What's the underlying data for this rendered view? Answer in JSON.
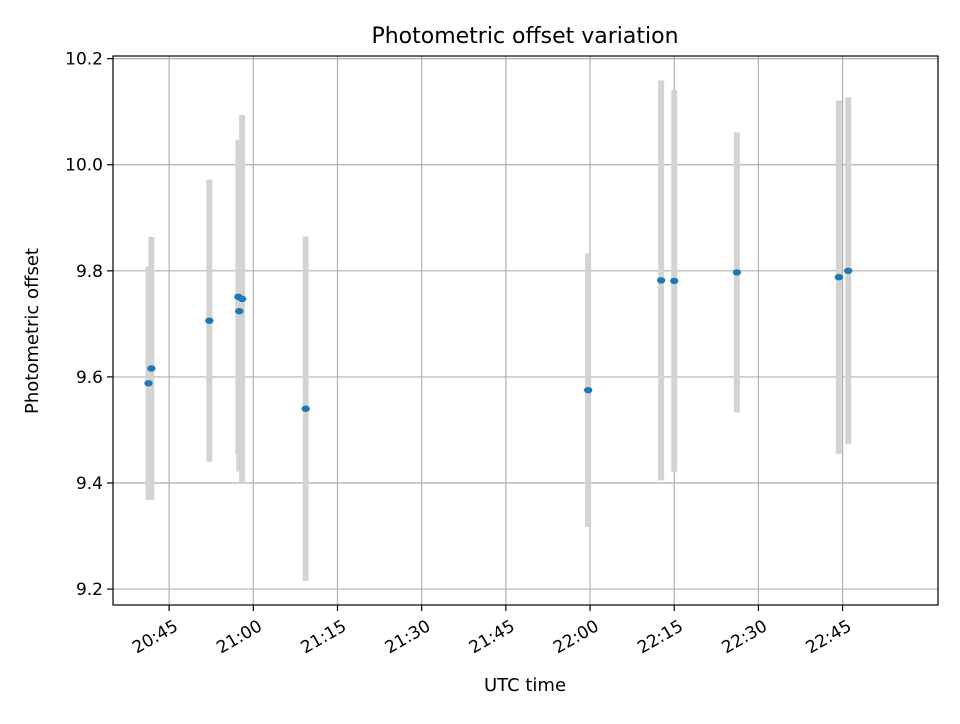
{
  "chart_data": {
    "type": "scatter",
    "title": "Photometric offset variation",
    "xlabel": "UTC time",
    "ylabel": "Photometric offset",
    "xlim": [
      "20:35",
      "23:02"
    ],
    "ylim": [
      9.17,
      10.205
    ],
    "x_ticks": [
      "20:45",
      "21:00",
      "21:15",
      "21:30",
      "21:45",
      "22:00",
      "22:15",
      "22:30",
      "22:45"
    ],
    "y_ticks": [
      9.2,
      9.4,
      9.6,
      9.8,
      10.0,
      10.2
    ],
    "grid": true,
    "points": [
      {
        "x": "20:41:20",
        "y": 9.588,
        "low": 9.368,
        "high": 9.808
      },
      {
        "x": "20:41:50",
        "y": 9.616,
        "low": 9.368,
        "high": 9.864
      },
      {
        "x": "20:52:10",
        "y": 9.706,
        "low": 9.44,
        "high": 9.972
      },
      {
        "x": "20:57:20",
        "y": 9.751,
        "low": 9.455,
        "high": 10.047
      },
      {
        "x": "20:57:30",
        "y": 9.724,
        "low": 9.422,
        "high": 10.026
      },
      {
        "x": "20:58:00",
        "y": 9.747,
        "low": 9.4,
        "high": 10.094
      },
      {
        "x": "21:09:20",
        "y": 9.54,
        "low": 9.215,
        "high": 9.865
      },
      {
        "x": "21:59:40",
        "y": 9.575,
        "low": 9.317,
        "high": 9.833
      },
      {
        "x": "22:12:40",
        "y": 9.782,
        "low": 9.405,
        "high": 10.159
      },
      {
        "x": "22:15:00",
        "y": 9.781,
        "low": 9.421,
        "high": 10.141
      },
      {
        "x": "22:26:10",
        "y": 9.797,
        "low": 9.533,
        "high": 10.061
      },
      {
        "x": "22:44:20",
        "y": 9.788,
        "low": 9.455,
        "high": 10.121
      },
      {
        "x": "22:46:00",
        "y": 9.8,
        "low": 9.473,
        "high": 10.127
      }
    ],
    "colors": {
      "point": "#1f77b4",
      "errorbar": "#d3d3d3",
      "grid": "#b0b0b0",
      "axis": "#000000"
    }
  }
}
